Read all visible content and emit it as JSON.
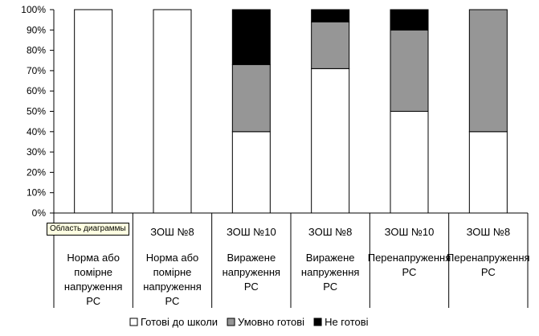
{
  "chart_data": {
    "type": "bar",
    "stacked": true,
    "percent": true,
    "categories": [
      [
        "",
        "Норма або",
        "помірне",
        "напруження",
        "РС"
      ],
      [
        "ЗОШ №8",
        "Норма або",
        "помірне",
        "напруження",
        "РС"
      ],
      [
        "ЗОШ №10",
        "Виражене",
        "напруження",
        "РС"
      ],
      [
        "ЗОШ №8",
        "Виражене",
        "напруження",
        "РС"
      ],
      [
        "ЗОШ №10",
        "Перенапруження",
        "РС"
      ],
      [
        "ЗОШ №8",
        "Перенапруження",
        "РС"
      ]
    ],
    "series": [
      {
        "name": "Готові до школи",
        "color": "#ffffff",
        "values": [
          100,
          100,
          40,
          71,
          50,
          40
        ]
      },
      {
        "name": "Умовно готові",
        "color": "#969696",
        "values": [
          0,
          0,
          33,
          23,
          40,
          60
        ]
      },
      {
        "name": "Не готові",
        "color": "#000000",
        "values": [
          0,
          0,
          27,
          6,
          10,
          0
        ]
      }
    ],
    "ylim": [
      0,
      100
    ],
    "yticks": [
      "0%",
      "10%",
      "20%",
      "30%",
      "40%",
      "50%",
      "60%",
      "70%",
      "80%",
      "90%",
      "100%"
    ],
    "grid": false,
    "legend_position": "bottom"
  },
  "tooltip": "Область диаграммы"
}
